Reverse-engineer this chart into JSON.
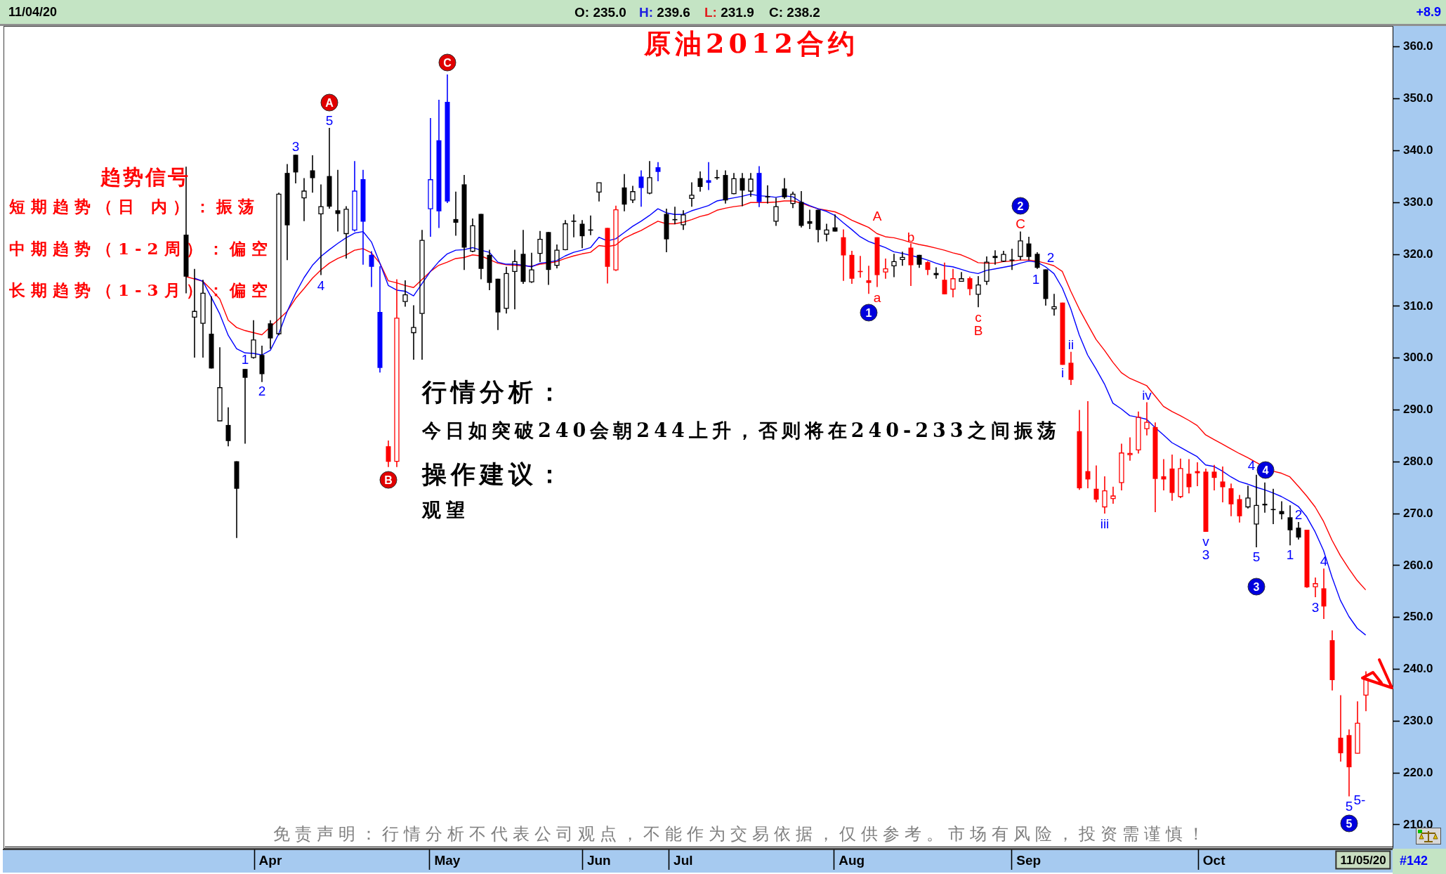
{
  "chart_data": {
    "type": "candlestick",
    "title": "原油2012合约",
    "categories": [
      null,
      null,
      null,
      null,
      null,
      null,
      null,
      null,
      null,
      null,
      "Apr",
      null,
      null,
      null,
      null,
      null,
      null,
      null,
      null,
      null,
      null,
      null,
      null,
      null,
      null,
      null,
      null,
      null,
      null,
      null,
      null,
      "May",
      null,
      null,
      null,
      null,
      null,
      null,
      null,
      null,
      null,
      null,
      null,
      null,
      null,
      null,
      null,
      null,
      null,
      "Jun",
      null,
      null,
      null,
      null,
      null,
      null,
      null,
      null,
      null,
      "Jul",
      null,
      null,
      null,
      null,
      null,
      null,
      null,
      null,
      null,
      null,
      null,
      null,
      null,
      null,
      null,
      null,
      null,
      null,
      null,
      "Aug",
      null,
      null,
      null,
      null,
      null,
      null,
      null,
      null,
      null,
      null,
      null,
      null,
      null,
      null,
      null,
      null,
      null,
      null,
      null,
      null,
      "Sep",
      null,
      null,
      null,
      null,
      null,
      null,
      null,
      null,
      null,
      null,
      null,
      null,
      null,
      null,
      null,
      null,
      null,
      null,
      null,
      null,
      null,
      "Oct",
      null,
      null,
      null,
      null,
      null,
      null,
      null,
      null,
      null,
      null,
      null,
      null,
      null,
      null,
      null,
      null,
      null,
      null
    ],
    "ohlc": [
      [
        323.8,
        336.9,
        312.5,
        315.7
      ],
      [
        307.9,
        317.2,
        300.1,
        309.0
      ],
      [
        306.7,
        315.1,
        300.1,
        312.5
      ],
      [
        304.7,
        311.9,
        298.0,
        298.0
      ],
      [
        287.9,
        302.1,
        287.9,
        294.3
      ],
      [
        287.1,
        290.5,
        283.0,
        284.0
      ],
      [
        280.1,
        280.1,
        265.3,
        274.8
      ],
      [
        297.9,
        297.9,
        283.5,
        296.2
      ],
      [
        300.1,
        307.3,
        299.9,
        303.5
      ],
      [
        300.6,
        302.4,
        295.4,
        296.9
      ],
      [
        306.7,
        307.3,
        301.8,
        303.8
      ],
      [
        304.7,
        331.9,
        304.4,
        331.6
      ],
      [
        335.7,
        337.4,
        318.9,
        325.6
      ],
      [
        339.2,
        339.2,
        333.7,
        335.8
      ],
      [
        330.9,
        334.7,
        326.4,
        332.2
      ],
      [
        336.2,
        339.1,
        331.9,
        334.7
      ],
      [
        327.8,
        333.5,
        316.0,
        329.2
      ],
      [
        335.1,
        344.4,
        328.8,
        329.2
      ],
      [
        328.5,
        336.3,
        324.4,
        327.8
      ],
      [
        324.0,
        329.3,
        319.2,
        328.7
      ],
      [
        324.7,
        338.0,
        324.4,
        332.2
      ],
      [
        334.5,
        336.3,
        318.0,
        326.3
      ],
      [
        319.9,
        320.6,
        313.7,
        317.6
      ],
      [
        308.9,
        317.7,
        297.2,
        298.1
      ],
      [
        283.0,
        284.1,
        279.0,
        280.0
      ],
      [
        280.1,
        315.2,
        279.0,
        307.7
      ],
      [
        310.9,
        315.0,
        309.9,
        312.2
      ],
      [
        304.9,
        310.2,
        299.7,
        305.9
      ],
      [
        308.6,
        324.7,
        299.7,
        322.7
      ],
      [
        328.8,
        346.3,
        323.4,
        334.4
      ],
      [
        342.0,
        349.8,
        325.1,
        328.3
      ],
      [
        349.4,
        354.7,
        329.9,
        330.2
      ],
      [
        326.8,
        332.1,
        323.6,
        326.1
      ],
      [
        333.5,
        335.3,
        317.0,
        321.3
      ],
      [
        320.6,
        326.9,
        320.4,
        325.5
      ],
      [
        327.8,
        327.8,
        315.2,
        317.2
      ],
      [
        319.9,
        320.9,
        313.1,
        314.5
      ],
      [
        315.3,
        315.3,
        305.4,
        308.8
      ],
      [
        309.6,
        317.6,
        308.6,
        316.3
      ],
      [
        316.7,
        320.9,
        309.4,
        318.6
      ],
      [
        320.1,
        324.7,
        314.3,
        314.7
      ],
      [
        314.7,
        320.3,
        314.5,
        317.0
      ],
      [
        320.2,
        324.5,
        318.5,
        322.9
      ],
      [
        324.3,
        324.3,
        314.1,
        317.0
      ],
      [
        317.9,
        321.9,
        317.3,
        320.8
      ],
      [
        320.9,
        326.6,
        320.8,
        325.9
      ],
      [
        326.5,
        327.7,
        323.3,
        326.3
      ],
      [
        325.9,
        326.6,
        321.2,
        323.5
      ],
      [
        324.8,
        327.5,
        323.7,
        324.7
      ],
      [
        332.0,
        333.8,
        330.2,
        333.8
      ],
      [
        325.1,
        325.1,
        314.4,
        317.6
      ],
      [
        317.0,
        329.4,
        316.8,
        328.6
      ],
      [
        332.9,
        335.5,
        328.3,
        329.6
      ],
      [
        330.5,
        333.2,
        329.9,
        332.1
      ],
      [
        335.0,
        336.2,
        329.2,
        332.8
      ],
      [
        331.8,
        338.0,
        331.6,
        334.8
      ],
      [
        336.8,
        337.8,
        334.1,
        335.9
      ],
      [
        327.8,
        328.8,
        320.4,
        322.9
      ],
      [
        326.8,
        329.2,
        325.8,
        326.7
      ],
      [
        325.7,
        328.5,
        324.7,
        327.6
      ],
      [
        330.8,
        333.9,
        329.2,
        331.4
      ],
      [
        334.7,
        336.0,
        332.1,
        333.0
      ],
      [
        334.3,
        337.8,
        332.4,
        333.8
      ],
      [
        334.9,
        336.3,
        334.4,
        334.8
      ],
      [
        335.3,
        336.2,
        329.8,
        330.4
      ],
      [
        331.7,
        335.7,
        331.6,
        334.6
      ],
      [
        334.7,
        335.7,
        329.3,
        332.3
      ],
      [
        332.2,
        335.7,
        331.1,
        334.5
      ],
      [
        335.7,
        337.0,
        329.1,
        330.1
      ],
      [
        331.2,
        333.3,
        329.8,
        331.1
      ],
      [
        326.4,
        330.9,
        325.5,
        329.2
      ],
      [
        332.7,
        334.7,
        330.7,
        331.0
      ],
      [
        329.8,
        332.1,
        328.9,
        331.6
      ],
      [
        330.1,
        332.2,
        325.2,
        325.5
      ],
      [
        326.4,
        328.6,
        324.9,
        325.9
      ],
      [
        328.6,
        328.6,
        322.3,
        324.7
      ],
      [
        323.9,
        325.9,
        322.5,
        324.7
      ],
      [
        325.2,
        327.7,
        324.4,
        324.4
      ],
      [
        323.3,
        324.8,
        314.9,
        319.8
      ],
      [
        319.9,
        320.7,
        314.3,
        315.3
      ],
      [
        316.8,
        319.7,
        315.5,
        316.7
      ],
      [
        315.0,
        317.8,
        312.4,
        314.5
      ],
      [
        323.3,
        323.3,
        313.7,
        316.0
      ],
      [
        316.6,
        319.2,
        315.3,
        317.2
      ],
      [
        317.8,
        320.1,
        315.6,
        318.6
      ],
      [
        319.0,
        320.5,
        317.8,
        319.4
      ],
      [
        321.3,
        322.1,
        313.9,
        317.9
      ],
      [
        319.9,
        319.9,
        317.4,
        318.0
      ],
      [
        318.5,
        318.7,
        316.0,
        317.0
      ],
      [
        316.4,
        317.5,
        315.3,
        316.0
      ],
      [
        315.1,
        318.4,
        312.3,
        312.3
      ],
      [
        313.3,
        317.2,
        311.7,
        315.3
      ],
      [
        314.8,
        316.6,
        314.8,
        315.3
      ],
      [
        315.4,
        315.7,
        312.1,
        313.3
      ],
      [
        312.3,
        315.8,
        309.8,
        314.1
      ],
      [
        314.8,
        319.6,
        314.1,
        318.5
      ],
      [
        319.7,
        320.8,
        318.0,
        319.3
      ],
      [
        318.7,
        320.7,
        318.5,
        320.0
      ],
      [
        319.0,
        321.1,
        317.0,
        318.8
      ],
      [
        319.6,
        324.4,
        318.9,
        322.6
      ],
      [
        322.1,
        323.4,
        318.9,
        319.5
      ],
      [
        320.1,
        320.4,
        317.2,
        317.4
      ],
      [
        317.1,
        317.1,
        310.1,
        311.4
      ],
      [
        309.5,
        312.4,
        308.2,
        309.9
      ],
      [
        310.7,
        310.7,
        298.7,
        298.7
      ],
      [
        299.1,
        301.2,
        294.8,
        295.8
      ],
      [
        285.9,
        290.0,
        274.6,
        274.9
      ],
      [
        278.2,
        291.7,
        274.9,
        276.6
      ],
      [
        274.8,
        279.3,
        272.2,
        272.7
      ],
      [
        271.3,
        277.2,
        270.0,
        274.4
      ],
      [
        272.9,
        275.2,
        271.9,
        273.4
      ],
      [
        276.0,
        283.5,
        274.5,
        281.7
      ],
      [
        281.5,
        284.7,
        280.2,
        281.6
      ],
      [
        282.3,
        289.7,
        281.6,
        288.6
      ],
      [
        286.4,
        291.5,
        285.1,
        287.6
      ],
      [
        286.7,
        287.6,
        270.3,
        276.7
      ],
      [
        277.2,
        280.5,
        274.5,
        276.6
      ],
      [
        278.7,
        281.4,
        272.5,
        274.0
      ],
      [
        273.3,
        280.6,
        273.0,
        278.7
      ],
      [
        277.7,
        280.5,
        273.9,
        275.1
      ],
      [
        278.2,
        279.9,
        275.3,
        277.8
      ],
      [
        278.1,
        278.7,
        266.5,
        266.5
      ],
      [
        278.1,
        279.4,
        274.5,
        276.9
      ],
      [
        276.2,
        279.1,
        272.2,
        275.1
      ],
      [
        274.9,
        275.8,
        269.5,
        271.8
      ],
      [
        272.8,
        273.6,
        268.3,
        269.5
      ],
      [
        271.3,
        275.4,
        271.0,
        273.0
      ],
      [
        268.0,
        277.5,
        263.5,
        271.6
      ],
      [
        271.9,
        276.0,
        270.2,
        271.6
      ],
      [
        270.9,
        274.8,
        268.0,
        270.8
      ],
      [
        270.5,
        272.4,
        268.9,
        269.9
      ],
      [
        269.3,
        271.6,
        263.9,
        266.8
      ],
      [
        267.3,
        268.4,
        265.0,
        265.4
      ],
      [
        266.9,
        266.9,
        255.7,
        255.8
      ],
      [
        255.9,
        257.7,
        253.9,
        256.5
      ],
      [
        255.6,
        259.4,
        249.7,
        252.1
      ],
      [
        245.6,
        247.5,
        235.9,
        237.9
      ],
      [
        226.8,
        235.0,
        222.2,
        223.8
      ],
      [
        227.3,
        228.4,
        215.5,
        221.1
      ],
      [
        223.8,
        233.8,
        223.7,
        229.6
      ],
      [
        235.0,
        239.6,
        231.9,
        238.2
      ]
    ],
    "colors": [
      "#000000",
      "#000000",
      "#000000",
      "#000000",
      "#000000",
      "#000000",
      "#000000",
      "#000000",
      "#000000",
      "#000000",
      "#000000",
      "#000000",
      "#000000",
      "#000000",
      "#000000",
      "#000000",
      "#000000",
      "#000000",
      "#000000",
      "#000000",
      "#0000ff",
      "#0000ff",
      "#0000ff",
      "#0000ff",
      "#ff0000",
      "#ff0000",
      "#000000",
      "#000000",
      "#000000",
      "#0000ff",
      "#0000ff",
      "#0000ff",
      "#000000",
      "#000000",
      "#000000",
      "#000000",
      "#000000",
      "#000000",
      "#000000",
      "#000000",
      "#000000",
      "#000000",
      "#000000",
      "#000000",
      "#000000",
      "#000000",
      "#000000",
      "#000000",
      "#000000",
      "#000000",
      "#ff0000",
      "#ff0000",
      "#000000",
      "#000000",
      "#0000ff",
      "#000000",
      "#0000ff",
      "#000000",
      "#000000",
      "#000000",
      "#000000",
      "#000000",
      "#0000ff",
      "#000000",
      "#000000",
      "#000000",
      "#000000",
      "#000000",
      "#0000ff",
      "#000000",
      "#000000",
      "#000000",
      "#000000",
      "#000000",
      "#000000",
      "#000000",
      "#000000",
      "#000000",
      "#ff0000",
      "#ff0000",
      "#ff0000",
      "#ff0000",
      "#ff0000",
      "#ff0000",
      "#000000",
      "#000000",
      "#ff0000",
      "#000000",
      "#ff0000",
      "#000000",
      "#ff0000",
      "#ff0000",
      "#000000",
      "#ff0000",
      "#000000",
      "#000000",
      "#000000",
      "#000000",
      "#000000",
      "#000000",
      "#000000",
      "#000000",
      "#000000",
      "#000000",
      "#ff0000",
      "#ff0000",
      "#ff0000",
      "#ff0000",
      "#ff0000",
      "#ff0000",
      "#ff0000",
      "#ff0000",
      "#ff0000",
      "#ff0000",
      "#ff0000",
      "#ff0000",
      "#ff0000",
      "#ff0000",
      "#ff0000",
      "#ff0000",
      "#ff0000",
      "#ff0000",
      "#ff0000",
      "#ff0000",
      "#ff0000",
      "#ff0000",
      "#000000",
      "#000000",
      "#000000",
      "#000000",
      "#000000",
      "#000000",
      "#000000",
      "#ff0000",
      "#ff0000",
      "#ff0000",
      "#ff0000",
      "#ff0000",
      "#ff0000",
      "#ff0000",
      "#ff0000"
    ],
    "series": [
      {
        "type": "line",
        "color": "#0000ff",
        "values": [
          null,
          315.4,
          314.8,
          311.7,
          308.5,
          304.4,
          301.8,
          301.0,
          300.9,
          300.6,
          301.5,
          304.7,
          309.0,
          312.5,
          315.5,
          317.9,
          319.6,
          320.9,
          322.1,
          323.2,
          324.1,
          324.4,
          322.4,
          318.3,
          314.0,
          313.1,
          312.9,
          312.0,
          null,
          316.7,
          318.6,
          320.1,
          320.8,
          320.9,
          321.3,
          320.8,
          320.4,
          318.5,
          318.1,
          318.1,
          317.9,
          317.6,
          318.3,
          318.5,
          318.8,
          319.7,
          320.4,
          320.8,
          321.3,
          323.3,
          322.6,
          323.0,
          324.2,
          325.4,
          326.4,
          327.5,
          328.8,
          328.0,
          327.7,
          327.7,
          328.4,
          328.9,
          329.4,
          330.3,
          330.6,
          330.9,
          331.2,
          331.6,
          331.3,
          331.2,
          331.0,
          331.3,
          331.1,
          330.1,
          329.4,
          328.8,
          328.3,
          327.5,
          326.1,
          324.8,
          323.4,
          322.5,
          321.9,
          321.3,
          320.5,
          320.2,
          319.8,
          319.4,
          318.9,
          318.3,
          317.8,
          317.6,
          317.1,
          316.6,
          316.3,
          316.9,
          317.2,
          317.5,
          317.8,
          318.3,
          318.7,
          318.5,
          317.6,
          316.3,
          313.5,
          309.5,
          304.5,
          300.6,
          297.9,
          295.0,
          291.3,
          290.2,
          288.9,
          288.6,
          288.2,
          286.6,
          285.2,
          283.7,
          282.8,
          281.9,
          281.0,
          279.4,
          279.1,
          278.2,
          277.1,
          276.2,
          275.7,
          275.1,
          274.6,
          274.0,
          273.3,
          272.4,
          271.4,
          269.4,
          266.5,
          262.9,
          257.8,
          253.3,
          250.2,
          247.9,
          246.6
        ]
      },
      {
        "type": "line",
        "color": "#ff0000",
        "values": [
          315.7,
          null,
          314.8,
          313.2,
          311.4,
          307.3,
          305.9,
          305.3,
          304.9,
          304.5,
          null,
          null,
          309.0,
          311.5,
          313.4,
          315.4,
          317.0,
          318.3,
          319.2,
          319.9,
          320.8,
          321.1,
          320.3,
          318.3,
          314.9,
          314.5,
          314.0,
          313.6,
          null,
          316.7,
          317.9,
          318.5,
          319.2,
          319.4,
          319.9,
          319.7,
          319.0,
          318.3,
          318.0,
          null,
          null,
          317.7,
          318.1,
          318.3,
          318.6,
          319.2,
          319.7,
          320.1,
          320.4,
          321.7,
          321.5,
          321.8,
          323.1,
          323.9,
          324.6,
          325.5,
          326.4,
          325.9,
          325.9,
          326.2,
          326.7,
          327.3,
          327.7,
          328.5,
          328.9,
          329.2,
          329.4,
          330.0,
          330.0,
          330.0,
          330.1,
          330.3,
          330.3,
          329.9,
          329.3,
          328.8,
          328.5,
          328.2,
          327.5,
          326.6,
          325.9,
          325.2,
          324.0,
          323.4,
          323.2,
          322.8,
          322.3,
          321.9,
          321.6,
          321.2,
          320.8,
          320.3,
          319.9,
          319.2,
          318.4,
          318.3,
          318.3,
          318.6,
          318.7,
          318.9,
          318.9,
          318.7,
          318.3,
          317.8,
          316.7,
          312.9,
          309.5,
          306.5,
          303.6,
          301.5,
          299.2,
          297.2,
          296.1,
          295.4,
          294.7,
          292.7,
          290.7,
          289.7,
          288.9,
          288.0,
          287.0,
          285.2,
          284.3,
          283.4,
          282.5,
          281.6,
          280.8,
          279.9,
          null,
          278.2,
          277.8,
          277.1,
          275.3,
          273.4,
          271.3,
          268.5,
          264.9,
          261.9,
          259.4,
          257.1,
          255.3
        ]
      }
    ],
    "ylim": [
      205.8,
      363.9
    ],
    "yticks": [
      {
        "value": 210,
        "label": "210.0"
      },
      {
        "value": 220,
        "label": "220.0"
      },
      {
        "value": 230,
        "label": "230.0"
      },
      {
        "value": 240,
        "label": "240.0"
      },
      {
        "value": 250,
        "label": "250.0"
      },
      {
        "value": 260,
        "label": "260.0"
      },
      {
        "value": 270,
        "label": "270.0"
      },
      {
        "value": 280,
        "label": "280.0"
      },
      {
        "value": 290,
        "label": "290.0"
      },
      {
        "value": 300,
        "label": "300.0"
      },
      {
        "value": 310,
        "label": "310.0"
      },
      {
        "value": 320,
        "label": "320.0"
      },
      {
        "value": 330,
        "label": "330.0"
      },
      {
        "value": 340,
        "label": "340.0"
      },
      {
        "value": 350,
        "label": "350.0"
      },
      {
        "value": 360,
        "label": "360.0"
      }
    ],
    "annotations": [
      "11/04/20",
      "O: 235.0",
      "H: 239.6",
      "L: 231.9",
      "C: 238.2",
      "+8.9",
      "趋势信号",
      "短期趋势（日 内）：振荡",
      "中期趋势（1-2周）：偏空",
      "长期趋势（1-3月）：偏空",
      "行情分析：",
      "今日如突破240会朝244上升，否则将在240-233之间振荡",
      "操作建议：",
      "观望",
      "免责声明：行情分析不代表公司观点，不能作为交易依据，仅供参考。市场有风险，投资需谨慎！",
      "11/05/20",
      "#142",
      "A",
      "5",
      "3",
      "4",
      "1",
      "2",
      "B",
      "C",
      "A",
      "a",
      "1",
      "b",
      "c",
      "B",
      "2",
      "C",
      "1",
      "2",
      "i",
      "ii",
      "iii",
      "iv",
      "v",
      "3",
      "4",
      "4",
      "5",
      "3",
      "1",
      "2",
      "3",
      "4",
      "5",
      "5-",
      "5"
    ]
  }
}
